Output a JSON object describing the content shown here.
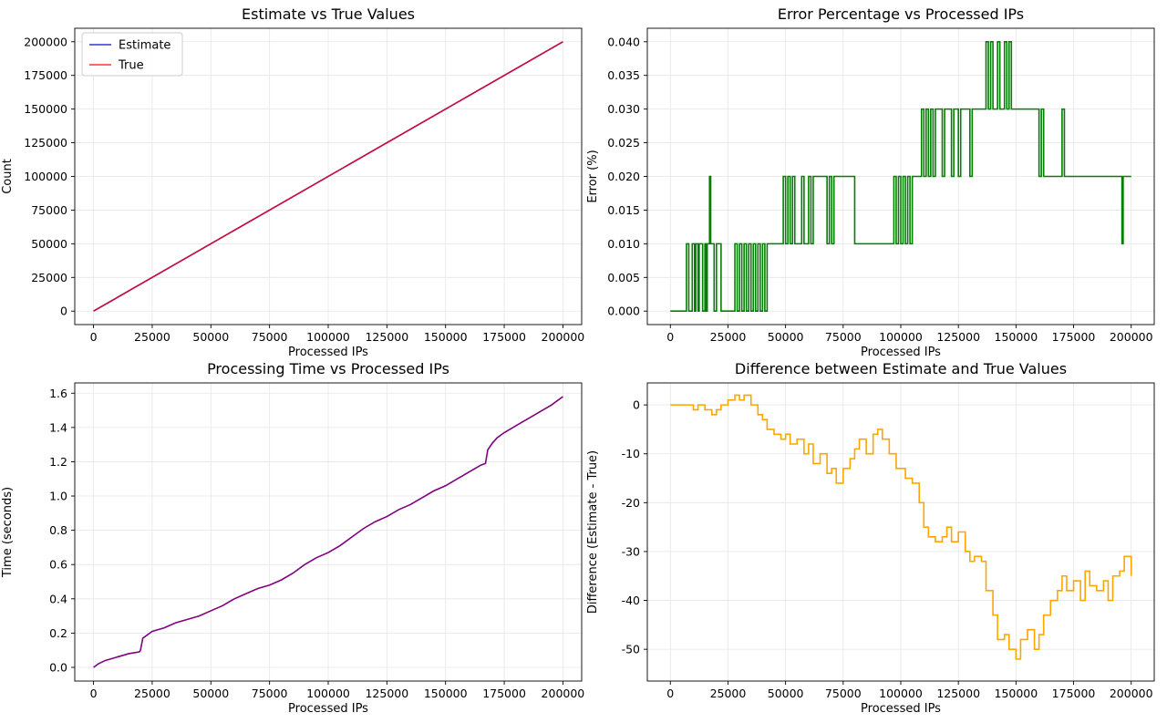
{
  "chart_data": [
    {
      "type": "line",
      "title": "Estimate vs True Values",
      "xlabel": "Processed IPs",
      "ylabel": "Count",
      "xlim": [
        -8000,
        208000
      ],
      "ylim": [
        -10000,
        210000
      ],
      "xticks": [
        0,
        25000,
        50000,
        75000,
        100000,
        125000,
        150000,
        175000,
        200000
      ],
      "yticks": [
        0,
        25000,
        50000,
        75000,
        100000,
        125000,
        150000,
        175000,
        200000
      ],
      "grid": true,
      "legend": "top-left",
      "series": [
        {
          "name": "Estimate",
          "color": "#0000cc",
          "x": [
            0,
            200000
          ],
          "y": [
            0,
            200000
          ]
        },
        {
          "name": "True",
          "color": "#ff0000",
          "x": [
            0,
            200000
          ],
          "y": [
            0,
            200000
          ]
        }
      ]
    },
    {
      "type": "line",
      "title": "Error Percentage vs Processed IPs",
      "xlabel": "Processed IPs",
      "ylabel": "Error (%)",
      "xlim": [
        -10000,
        210000
      ],
      "ylim": [
        -0.002,
        0.042
      ],
      "xticks": [
        0,
        25000,
        50000,
        75000,
        100000,
        125000,
        150000,
        175000,
        200000
      ],
      "yticks": [
        0.0,
        0.005,
        0.01,
        0.015,
        0.02,
        0.025,
        0.03,
        0.035,
        0.04
      ],
      "ytick_decimals": 3,
      "grid": true,
      "series": [
        {
          "color": "#008000",
          "step": true,
          "x": [
            0,
            7000,
            8000,
            9500,
            10500,
            11000,
            12000,
            12500,
            14000,
            15000,
            15500,
            16000,
            17000,
            17500,
            19000,
            20000,
            22000,
            28000,
            29000,
            30000,
            31000,
            32000,
            33000,
            34000,
            35000,
            36000,
            37000,
            38000,
            39000,
            40000,
            41000,
            42000,
            49000,
            50000,
            51000,
            52000,
            53000,
            54000,
            57000,
            58000,
            60000,
            61000,
            62000,
            68000,
            69000,
            70000,
            71000,
            80000,
            97000,
            98000,
            99000,
            100000,
            101000,
            102000,
            103000,
            104000,
            105000,
            109000,
            110000,
            111000,
            112000,
            113000,
            114000,
            115000,
            118000,
            119000,
            122000,
            123000,
            125000,
            126000,
            130000,
            131000,
            135000,
            137000,
            138000,
            139000,
            140000,
            142000,
            143000,
            145000,
            146000,
            147000,
            148000,
            150000,
            160000,
            161000,
            162000,
            170000,
            171000,
            196000,
            196500,
            200000
          ],
          "y": [
            0.0,
            0.01,
            0.0,
            0.01,
            0.0,
            0.01,
            0.0,
            0.01,
            0.0,
            0.01,
            0.0,
            0.01,
            0.02,
            0.01,
            0.0,
            0.01,
            0.0,
            0.01,
            0.0,
            0.01,
            0.0,
            0.01,
            0.0,
            0.01,
            0.0,
            0.01,
            0.0,
            0.01,
            0.0,
            0.01,
            0.0,
            0.01,
            0.02,
            0.01,
            0.02,
            0.01,
            0.02,
            0.01,
            0.02,
            0.01,
            0.02,
            0.01,
            0.02,
            0.01,
            0.02,
            0.01,
            0.02,
            0.01,
            0.02,
            0.01,
            0.02,
            0.01,
            0.02,
            0.01,
            0.02,
            0.01,
            0.02,
            0.03,
            0.02,
            0.03,
            0.02,
            0.03,
            0.02,
            0.03,
            0.02,
            0.03,
            0.02,
            0.03,
            0.02,
            0.03,
            0.02,
            0.03,
            0.03,
            0.04,
            0.03,
            0.04,
            0.03,
            0.04,
            0.03,
            0.04,
            0.03,
            0.04,
            0.03,
            0.03,
            0.02,
            0.03,
            0.02,
            0.03,
            0.02,
            0.01,
            0.02,
            0.02
          ]
        }
      ]
    },
    {
      "type": "line",
      "title": "Processing Time vs Processed IPs",
      "xlabel": "Processed IPs",
      "ylabel": "Time (seconds)",
      "xlim": [
        -8000,
        208000
      ],
      "ylim": [
        -0.08,
        1.66
      ],
      "xticks": [
        0,
        25000,
        50000,
        75000,
        100000,
        125000,
        150000,
        175000,
        200000
      ],
      "yticks": [
        0.0,
        0.2,
        0.4,
        0.6,
        0.8,
        1.0,
        1.2,
        1.4,
        1.6
      ],
      "ytick_decimals": 1,
      "grid": true,
      "series": [
        {
          "color": "#800080",
          "x": [
            0,
            2000,
            5000,
            10000,
            15000,
            19500,
            20000,
            21000,
            25000,
            30000,
            35000,
            40000,
            45000,
            50000,
            55000,
            60000,
            65000,
            70000,
            75000,
            80000,
            85000,
            90000,
            95000,
            100000,
            105000,
            110000,
            115000,
            120000,
            125000,
            130000,
            135000,
            140000,
            145000,
            150000,
            155000,
            160000,
            165000,
            167000,
            168000,
            170000,
            172000,
            175000,
            180000,
            185000,
            190000,
            195000,
            200000
          ],
          "y": [
            0.0,
            0.02,
            0.04,
            0.06,
            0.08,
            0.09,
            0.1,
            0.17,
            0.21,
            0.23,
            0.26,
            0.28,
            0.3,
            0.33,
            0.36,
            0.4,
            0.43,
            0.46,
            0.48,
            0.51,
            0.55,
            0.6,
            0.64,
            0.67,
            0.71,
            0.76,
            0.81,
            0.85,
            0.88,
            0.92,
            0.95,
            0.99,
            1.03,
            1.06,
            1.1,
            1.14,
            1.18,
            1.19,
            1.27,
            1.31,
            1.34,
            1.37,
            1.41,
            1.45,
            1.49,
            1.53,
            1.58
          ]
        }
      ]
    },
    {
      "type": "line",
      "title": "Difference between Estimate and True Values",
      "xlabel": "Processed IPs",
      "ylabel": "Difference (Estimate - True)",
      "xlim": [
        -10000,
        210000
      ],
      "ylim": [
        -56.5,
        4.5
      ],
      "xticks": [
        0,
        25000,
        50000,
        75000,
        100000,
        125000,
        150000,
        175000,
        200000
      ],
      "yticks": [
        0,
        -10,
        -20,
        -30,
        -40,
        -50
      ],
      "grid": true,
      "series": [
        {
          "color": "#ffa500",
          "step": true,
          "x": [
            0,
            5000,
            8000,
            10000,
            12000,
            15000,
            18000,
            20000,
            22000,
            25000,
            28000,
            30000,
            32000,
            35000,
            38000,
            40000,
            42000,
            45000,
            48000,
            50000,
            52000,
            55000,
            58000,
            60000,
            62000,
            65000,
            68000,
            70000,
            72000,
            75000,
            78000,
            80000,
            82000,
            85000,
            88000,
            90000,
            92000,
            95000,
            98000,
            100000,
            102000,
            105000,
            108000,
            110000,
            112000,
            115000,
            118000,
            120000,
            122000,
            125000,
            128000,
            130000,
            132000,
            135000,
            137000,
            140000,
            142000,
            145000,
            147000,
            150000,
            152000,
            155000,
            158000,
            160000,
            162000,
            165000,
            168000,
            170000,
            172000,
            175000,
            178000,
            180000,
            182000,
            185000,
            188000,
            190000,
            192000,
            195000,
            197000,
            200000
          ],
          "y": [
            0,
            0,
            0,
            -1,
            0,
            -1,
            -2,
            -1,
            0,
            1,
            2,
            1,
            2,
            0,
            -2,
            -3,
            -5,
            -6,
            -7,
            -6,
            -8,
            -7,
            -10,
            -8,
            -12,
            -10,
            -14,
            -13,
            -16,
            -13,
            -11,
            -9,
            -7,
            -10,
            -6,
            -5,
            -7,
            -10,
            -13,
            -13,
            -15,
            -16,
            -20,
            -25,
            -27,
            -28,
            -27,
            -25,
            -28,
            -26,
            -30,
            -32,
            -31,
            -32,
            -38,
            -43,
            -48,
            -47,
            -50,
            -52,
            -48,
            -46,
            -50,
            -47,
            -43,
            -40,
            -38,
            -35,
            -38,
            -36,
            -40,
            -34,
            -37,
            -38,
            -36,
            -40,
            -35,
            -34,
            -31,
            -35
          ]
        }
      ]
    }
  ]
}
